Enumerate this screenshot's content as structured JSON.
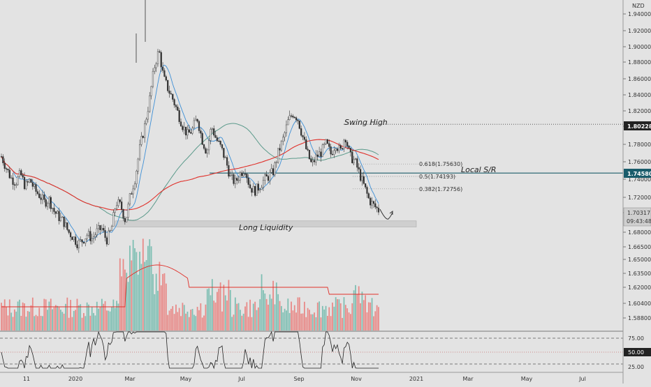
{
  "chart_data": {
    "type": "candlestick",
    "currency": "NZD",
    "price_axis": {
      "ticks": [
        "1.94000",
        "1.92000",
        "1.90000",
        "1.88000",
        "1.86000",
        "1.84000",
        "1.82000",
        "1.80000",
        "1.78000",
        "1.76000",
        "1.74000",
        "1.72000",
        "1.70000",
        "1.68000",
        "1.66500",
        "1.65000",
        "1.63500",
        "1.62000",
        "1.60400",
        "1.58800"
      ],
      "current_price": "1.70317",
      "countdown": "09:43:48",
      "swing_high_price": "1.80228",
      "local_sr_price": "1.74580",
      "rsi_level": "50.00",
      "rsi_ticks": [
        "75.00",
        "25.00"
      ]
    },
    "time_axis": [
      "11",
      "2020",
      "Mar",
      "May",
      "Jul",
      "Sep",
      "Nov",
      "2021",
      "Mar",
      "May",
      "Jul"
    ],
    "annotations": {
      "swing_high": "Swing High",
      "local_sr": "Local S/R",
      "long_liquidity": "Long Liquidity"
    },
    "fib_levels": [
      {
        "label": "0.618(1.75630)",
        "value": 1.7563
      },
      {
        "label": "0.5(1.74193)",
        "value": 1.74193
      },
      {
        "label": "0.382(1.72756)",
        "value": 1.72756
      }
    ],
    "levels": {
      "swing_high": 1.80228,
      "local_sr": 1.7458,
      "liquidity_top": 1.6905,
      "liquidity_bottom": 1.6835
    },
    "close_path": [
      1.765,
      1.752,
      1.74,
      1.735,
      1.745,
      1.73,
      1.738,
      1.726,
      1.72,
      1.712,
      1.715,
      1.702,
      1.695,
      1.69,
      1.678,
      1.672,
      1.664,
      1.668,
      1.675,
      1.67,
      1.678,
      1.682,
      1.668,
      1.68,
      1.712,
      1.708,
      1.69,
      1.72,
      1.74,
      1.775,
      1.8,
      1.83,
      1.868,
      1.888,
      1.855,
      1.842,
      1.83,
      1.815,
      1.8,
      1.79,
      1.796,
      1.81,
      1.785,
      1.77,
      1.8,
      1.785,
      1.775,
      1.76,
      1.74,
      1.735,
      1.745,
      1.752,
      1.73,
      1.725,
      1.73,
      1.738,
      1.742,
      1.748,
      1.77,
      1.785,
      1.805,
      1.815,
      1.81,
      1.79,
      1.77,
      1.755,
      1.765,
      1.77,
      1.78,
      1.768,
      1.78,
      1.77,
      1.79,
      1.765,
      1.76,
      1.745,
      1.73,
      1.715,
      1.708,
      1.703
    ],
    "colors": {
      "bull": "#26a69a",
      "bear": "#ef5350",
      "ma_red": "#e0302a",
      "ma_teal": "#5b9a8b",
      "ma_blue": "#3d8fd6",
      "sr_line": "#1a5c6b",
      "background": "#e3e3e3"
    }
  }
}
